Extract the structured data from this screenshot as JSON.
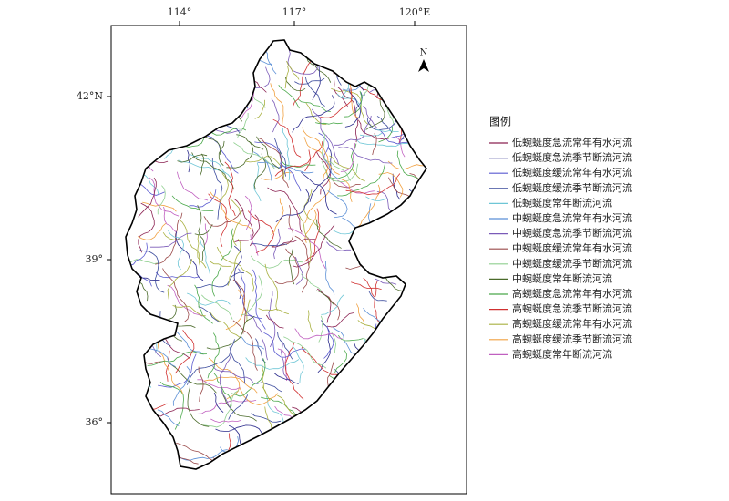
{
  "map": {
    "top_ticks": [
      "114°",
      "117°",
      "120°E"
    ],
    "left_ticks": [
      "42°N",
      "39°",
      "36°"
    ],
    "north": "N",
    "legend": {
      "title": "图例",
      "items": [
        {
          "name": "低蜿蜒度急流常年有水河流",
          "color": "#8b2252"
        },
        {
          "name": "低蜿蜒度急流季节断流河流",
          "color": "#2b2b8c"
        },
        {
          "name": "低蜿蜒度缓流常年有水河流",
          "color": "#5a5ad0"
        },
        {
          "name": "低蜿蜒度缓流季节断流河流",
          "color": "#3a4a9c"
        },
        {
          "name": "低蜿蜒度常年断流河流",
          "color": "#6ec6d6"
        },
        {
          "name": "中蜿蜒度急流常年有水河流",
          "color": "#5b8fd6"
        },
        {
          "name": "中蜿蜒度急流季节断流河流",
          "color": "#7a5ab8"
        },
        {
          "name": "中蜿蜒度缓流常年有水河流",
          "color": "#9a4a4a"
        },
        {
          "name": "中蜿蜒度缓流季节断流河流",
          "color": "#8fcf8f"
        },
        {
          "name": "中蜿蜒度常年断流河流",
          "color": "#4a6a2a"
        },
        {
          "name": "高蜿蜒度急流常年有水河流",
          "color": "#4aa84a"
        },
        {
          "name": "高蜿蜒度急流季节断流河流",
          "color": "#d03030"
        },
        {
          "name": "高蜿蜒度缓流常年有水河流",
          "color": "#a8b040"
        },
        {
          "name": "高蜿蜒度缓流季节断流河流",
          "color": "#f0a040"
        },
        {
          "name": "高蜿蜒度常年断流河流",
          "color": "#c060c0"
        }
      ]
    }
  }
}
